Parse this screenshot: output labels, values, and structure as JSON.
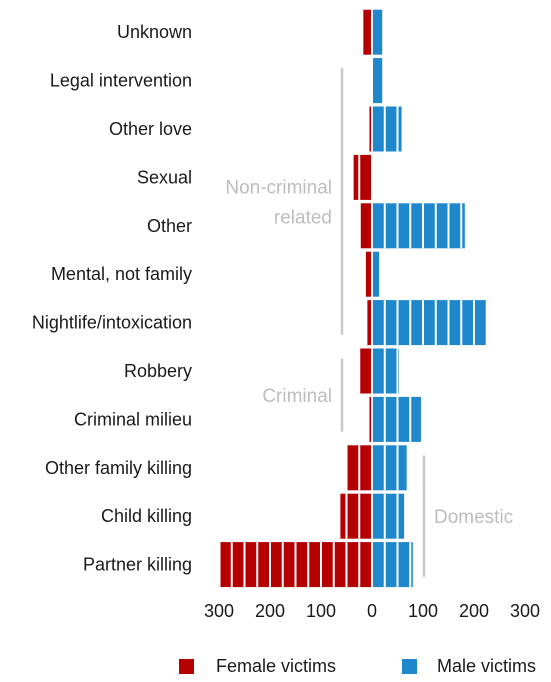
{
  "chart_data": {
    "type": "bar",
    "orientation": "horizontal-diverging",
    "categories": [
      "Unknown",
      "Legal intervention",
      "Other love",
      "Sexual",
      "Other",
      "Mental, not family",
      "Nightlife/intoxication",
      "Robbery",
      "Criminal milieu",
      "Other family killing",
      "Child killing",
      "Partner killing"
    ],
    "series": [
      {
        "name": "Female victims",
        "color": "#b40000",
        "values": [
          17,
          0,
          5,
          36,
          22,
          12,
          9,
          26,
          5,
          48,
          62,
          297
        ]
      },
      {
        "name": "Male victims",
        "color": "#1f87cc",
        "values": [
          20,
          20,
          58,
          0,
          182,
          14,
          223,
          53,
          96,
          68,
          63,
          80
        ]
      }
    ],
    "unit_step": 25,
    "xticks": [
      "300",
      "200",
      "100",
      "0",
      "100",
      "200",
      "300"
    ],
    "xtick_values": [
      -300,
      -200,
      -100,
      0,
      100,
      200,
      300
    ],
    "xlim": [
      -300,
      300
    ],
    "groups": [
      {
        "label_lines": [
          "Non-criminal",
          "related"
        ],
        "from": "Legal intervention",
        "to": "Nightlife/intoxication",
        "side": "left"
      },
      {
        "label_lines": [
          "Criminal"
        ],
        "from": "Robbery",
        "to": "Criminal milieu",
        "side": "left"
      },
      {
        "label_lines": [
          "Domestic"
        ],
        "from": "Other family killing",
        "to": "Partner killing",
        "side": "right"
      }
    ],
    "legend": {
      "position": "bottom",
      "entries": [
        "Female victims",
        "Male victims"
      ]
    }
  }
}
